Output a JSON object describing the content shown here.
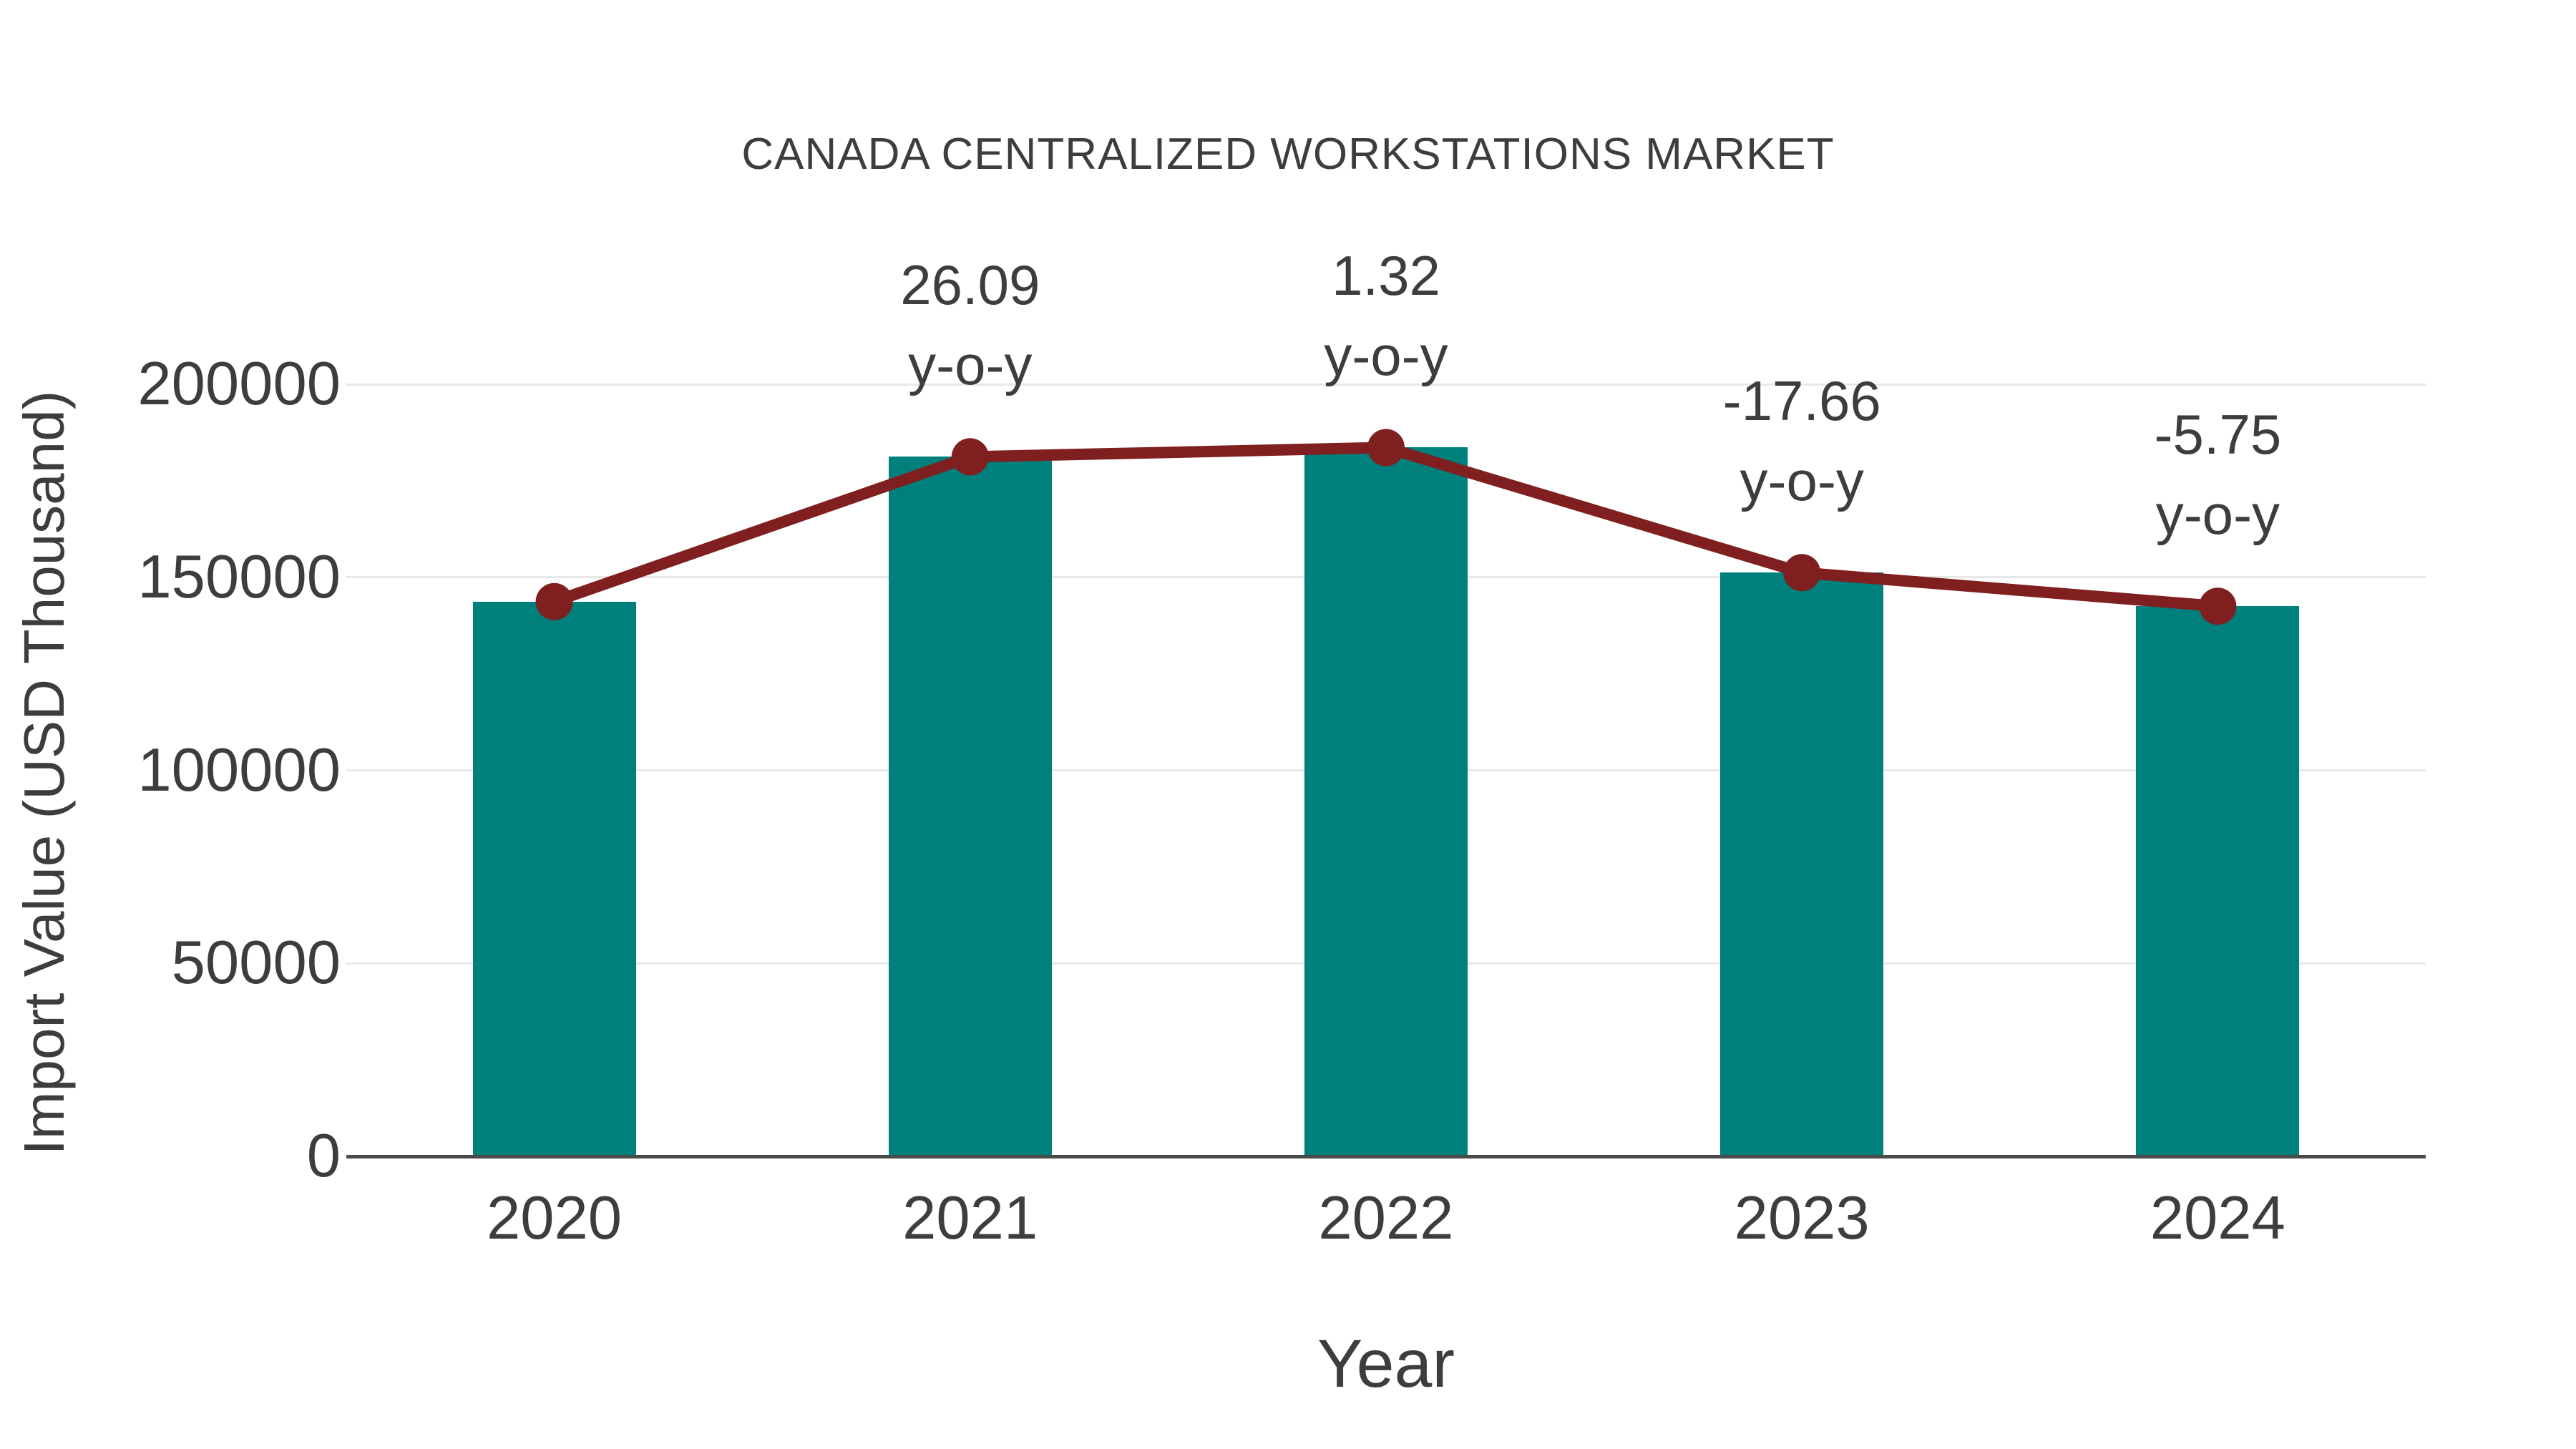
{
  "page": {
    "background": "#ffffff"
  },
  "chart_data": {
    "type": "bar",
    "title": "CANADA CENTRALIZED WORKSTATIONS MARKET",
    "xlabel": "Year",
    "ylabel": "Import Value (USD Thousand)",
    "categories": [
      "2020",
      "2021",
      "2022",
      "2023",
      "2024"
    ],
    "series": [
      {
        "name": "Import Value (USD Thousand)",
        "type": "bar",
        "color": "#00807c",
        "values": [
          143700,
          181200,
          183600,
          151200,
          142500
        ]
      },
      {
        "name": "y-o-y growth (%)",
        "type": "line",
        "color": "#7f1f1f",
        "values": [
          null,
          26.09,
          1.32,
          -17.66,
          -5.75
        ],
        "plotted_at": "bar_tops",
        "marker": "circle"
      }
    ],
    "point_labels": [
      null,
      "26.09",
      "1.32",
      "-17.66",
      "-5.75"
    ],
    "point_label_suffix": "y-o-y",
    "yticks": [
      0,
      50000,
      100000,
      150000,
      200000
    ],
    "ylim": [
      0,
      200000
    ],
    "grid": true,
    "legend": "none"
  },
  "colors": {
    "bar": "#00807c",
    "line": "#7f1f1f",
    "text": "#3d3d3d",
    "grid": "#e8e8e8",
    "axis": "#4a4a4a",
    "background": "#ffffff"
  }
}
